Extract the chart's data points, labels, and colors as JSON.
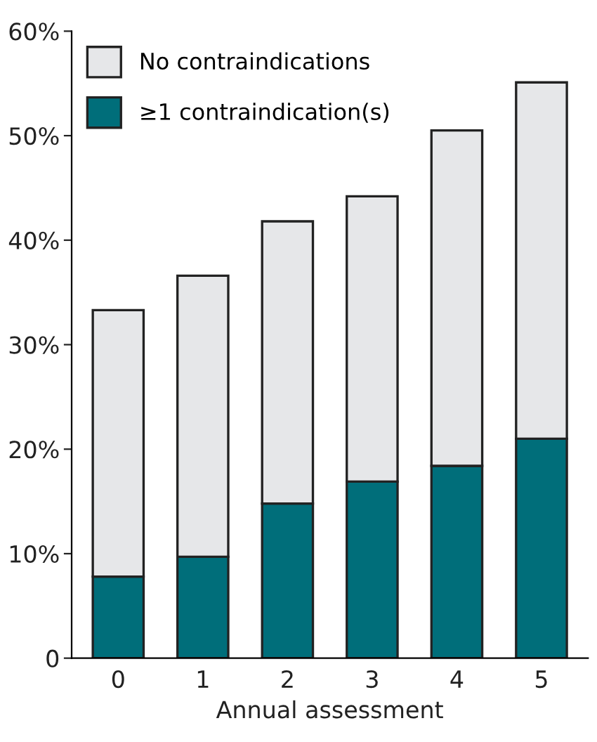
{
  "chart_data": {
    "type": "bar",
    "stacked": true,
    "xlabel": "Annual assessment",
    "categories": [
      "0",
      "1",
      "2",
      "3",
      "4",
      "5"
    ],
    "series": [
      {
        "name": "≥1 contraindication(s)",
        "color": "#006e7a",
        "values": [
          7.8,
          9.7,
          14.8,
          16.9,
          18.4,
          21.0
        ]
      },
      {
        "name": "No contraindications",
        "color": "#e6e7e9",
        "values": [
          25.5,
          26.9,
          27.0,
          27.3,
          32.1,
          34.1
        ]
      }
    ],
    "ylim": [
      0,
      60
    ],
    "yticks": [
      0,
      {
        "value": 10,
        "label": "10%"
      },
      {
        "value": 20,
        "label": "20%"
      },
      {
        "value": 30,
        "label": "30%"
      },
      {
        "value": 40,
        "label": "40%"
      },
      {
        "value": 50,
        "label": "50%"
      },
      {
        "value": 60,
        "label": "60%"
      }
    ],
    "grid": false,
    "legend": "top left"
  }
}
